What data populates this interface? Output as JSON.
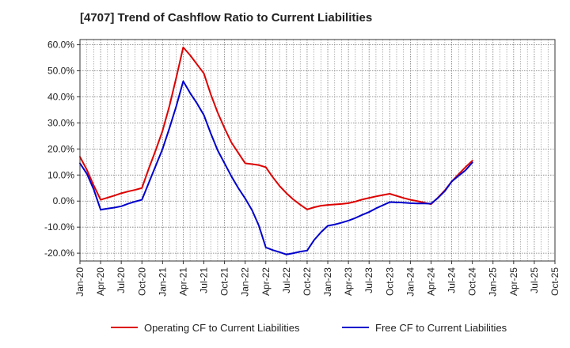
{
  "chart_data": {
    "type": "line",
    "title": "[4707]  Trend of Cashflow Ratio to Current Liabilities",
    "xlabel": "",
    "ylabel": "",
    "ylim": [
      -23,
      62
    ],
    "y_ticks": [
      60,
      50,
      40,
      30,
      20,
      10,
      0,
      -10,
      -20
    ],
    "y_tick_labels": [
      "60.0%",
      "50.0%",
      "40.0%",
      "30.0%",
      "20.0%",
      "10.0%",
      "0.0%",
      "-10.0%",
      "-20.0%"
    ],
    "x_tick_labels": [
      "Jan-20",
      "Apr-20",
      "Jul-20",
      "Oct-20",
      "Jan-21",
      "Apr-21",
      "Jul-21",
      "Oct-21",
      "Jan-22",
      "Apr-22",
      "Jul-22",
      "Oct-22",
      "Jan-23",
      "Apr-23",
      "Jul-23",
      "Oct-23",
      "Jan-24",
      "Apr-24",
      "Jul-24",
      "Oct-24",
      "Jan-25",
      "Apr-25",
      "Jul-25",
      "Oct-25"
    ],
    "grid": true,
    "legend_position": "bottom",
    "series": [
      {
        "name": "Operating CF to Current Liabilities",
        "color": "#dd0000",
        "x": [
          "Jan-20",
          "Feb-20",
          "Mar-20",
          "Apr-20",
          "May-20",
          "Jun-20",
          "Jul-20",
          "Aug-20",
          "Sep-20",
          "Oct-20",
          "Nov-20",
          "Dec-20",
          "Jan-21",
          "Feb-21",
          "Mar-21",
          "Apr-21",
          "May-21",
          "Jun-21",
          "Jul-21",
          "Aug-21",
          "Sep-21",
          "Oct-21",
          "Nov-21",
          "Dec-21",
          "Jan-22",
          "Feb-22",
          "Mar-22",
          "Apr-22",
          "May-22",
          "Jun-22",
          "Jul-22",
          "Aug-22",
          "Sep-22",
          "Oct-22",
          "Nov-22",
          "Dec-22",
          "Jan-23",
          "Feb-23",
          "Mar-23",
          "Apr-23",
          "May-23",
          "Jun-23",
          "Jul-23",
          "Aug-23",
          "Sep-23",
          "Oct-23",
          "Nov-23",
          "Dec-23",
          "Jan-24",
          "Feb-24",
          "Mar-24",
          "Apr-24",
          "May-24",
          "Jun-24",
          "Jul-24",
          "Aug-24",
          "Sep-24",
          "Oct-24"
        ],
        "values": [
          17,
          12,
          6,
          0.5,
          1.3,
          2.1,
          3.0,
          3.7,
          4.3,
          5.0,
          12.5,
          19.5,
          27,
          36.5,
          47.5,
          59,
          56,
          52.5,
          49,
          41,
          34,
          28,
          22.5,
          18.5,
          14.5,
          14.2,
          13.8,
          13,
          9.2,
          5.8,
          3.0,
          0.6,
          -1.4,
          -3.2,
          -2.4,
          -1.8,
          -1.5,
          -1.3,
          -1.1,
          -0.8,
          -0.2,
          0.6,
          1.2,
          1.8,
          2.3,
          2.8,
          2.0,
          1.2,
          0.5,
          0,
          -0.6,
          -1.2,
          1.3,
          4.1,
          7.5,
          10.3,
          13.0,
          15.5
        ]
      },
      {
        "name": "Free CF to Current Liabilities",
        "color": "#0000cc",
        "x": [
          "Jan-20",
          "Feb-20",
          "Mar-20",
          "Apr-20",
          "May-20",
          "Jun-20",
          "Jul-20",
          "Aug-20",
          "Sep-20",
          "Oct-20",
          "Nov-20",
          "Dec-20",
          "Jan-21",
          "Feb-21",
          "Mar-21",
          "Apr-21",
          "May-21",
          "Jun-21",
          "Jul-21",
          "Aug-21",
          "Sep-21",
          "Oct-21",
          "Nov-21",
          "Dec-21",
          "Jan-22",
          "Feb-22",
          "Mar-22",
          "Apr-22",
          "May-22",
          "Jun-22",
          "Jul-22",
          "Aug-22",
          "Sep-22",
          "Oct-22",
          "Nov-22",
          "Dec-22",
          "Jan-23",
          "Feb-23",
          "Mar-23",
          "Apr-23",
          "May-23",
          "Jun-23",
          "Jul-23",
          "Aug-23",
          "Sep-23",
          "Oct-23",
          "Nov-23",
          "Dec-23",
          "Jan-24",
          "Feb-24",
          "Mar-24",
          "Apr-24",
          "May-24",
          "Jun-24",
          "Jul-24",
          "Aug-24",
          "Sep-24",
          "Oct-24"
        ],
        "values": [
          14.5,
          10.5,
          4.5,
          -3.3,
          -2.9,
          -2.5,
          -2.0,
          -1.0,
          -0.2,
          0.5,
          7.0,
          13.5,
          20,
          28,
          36.5,
          46,
          41.5,
          37.5,
          33,
          26,
          19.5,
          14.5,
          9.5,
          5.0,
          1.0,
          -3.5,
          -9.5,
          -17.8,
          -18.8,
          -19.6,
          -20.5,
          -20.0,
          -19.4,
          -19.0,
          -15.0,
          -12.0,
          -9.5,
          -9.0,
          -8.3,
          -7.5,
          -6.5,
          -5.3,
          -4.2,
          -2.8,
          -1.6,
          -0.4,
          -0.5,
          -0.6,
          -0.8,
          -0.9,
          -0.9,
          -1.0,
          1.2,
          3.8,
          7.5,
          9.7,
          11.8,
          14.8
        ]
      }
    ]
  }
}
